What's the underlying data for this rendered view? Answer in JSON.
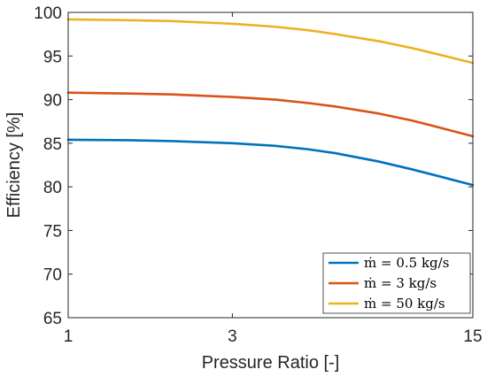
{
  "chart_data": {
    "type": "line",
    "xlabel": "Pressure Ratio [-]",
    "ylabel": "Efficiency [%]",
    "x_scale": "log",
    "xlim": [
      1,
      15
    ],
    "ylim": [
      65,
      100
    ],
    "x_ticks": [
      1,
      3,
      15
    ],
    "x_tick_labels": [
      "1",
      "3",
      "15"
    ],
    "y_ticks": [
      65,
      70,
      75,
      80,
      85,
      90,
      95,
      100
    ],
    "y_tick_labels": [
      "65",
      "70",
      "75",
      "80",
      "85",
      "90",
      "95",
      "100"
    ],
    "grid": false,
    "legend_position": "bottom-right",
    "x": [
      1,
      1.5,
      2,
      3,
      4,
      5,
      6,
      8,
      10,
      12,
      15
    ],
    "series": [
      {
        "name": "ṁ = 0.5 kg/s",
        "color": "#0072BD",
        "values": [
          85.4,
          85.35,
          85.25,
          85.0,
          84.7,
          84.3,
          83.85,
          82.9,
          82.0,
          81.2,
          80.2
        ]
      },
      {
        "name": "ṁ = 3 kg/s",
        "color": "#D95319",
        "values": [
          90.8,
          90.7,
          90.6,
          90.3,
          90.0,
          89.6,
          89.2,
          88.4,
          87.6,
          86.8,
          85.8
        ]
      },
      {
        "name": "ṁ = 50 kg/s",
        "color": "#EDB120",
        "values": [
          99.2,
          99.1,
          99.0,
          98.7,
          98.35,
          97.95,
          97.5,
          96.7,
          95.9,
          95.15,
          94.2
        ]
      }
    ]
  }
}
